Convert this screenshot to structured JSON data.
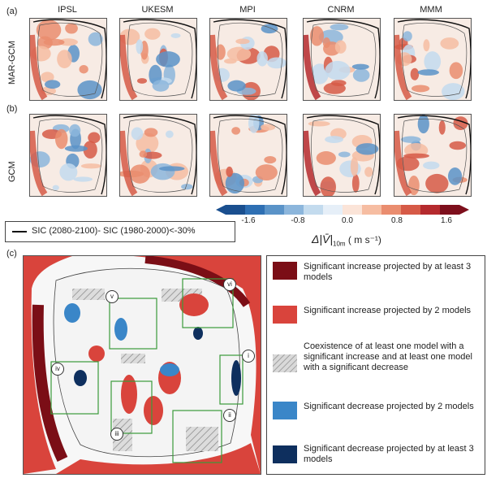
{
  "panel_labels": {
    "a": "(a)",
    "b": "(b)",
    "c": "(c)"
  },
  "model_columns": [
    "IPSL",
    "UKESM",
    "MPI",
    "CNRM",
    "MMM"
  ],
  "row_titles": [
    "MAR-GCM",
    "GCM"
  ],
  "contour_legend": "SIC (2080-2100)- SIC (1980-2000)<-30%",
  "colorbar": {
    "ticks": [
      "-1.6",
      "-0.8",
      "0.0",
      "0.8",
      "1.6"
    ],
    "label": "Δ|V̄|",
    "label_sub": "10m",
    "label_unit": "( m s⁻¹)",
    "colors": [
      "#1a4f8f",
      "#2e6fb3",
      "#5a93c8",
      "#8cb6dc",
      "#c3dbee",
      "#e6eff8",
      "#fbe4d8",
      "#f6bda2",
      "#ea8d6f",
      "#d65a47",
      "#b52a2e",
      "#7d0f1c"
    ]
  },
  "significance_legend": [
    {
      "text": "Significant increase projected by at least 3 models",
      "color": "#7b0e16"
    },
    {
      "text": "Significant increase projected by 2 models",
      "color": "#d9443c"
    },
    {
      "text": "Coexistence of at least one model with a significant increase and at least one model  with a significant decrease",
      "color": "hatch"
    },
    {
      "text": "Significant decrease projected by 2 models",
      "color": "#3a86c8"
    },
    {
      "text": "Significant decrease projected by at least 3 models",
      "color": "#0e2f5e"
    }
  ],
  "regions": [
    "i",
    "ii",
    "iii",
    "iv",
    "v",
    "vi"
  ]
}
